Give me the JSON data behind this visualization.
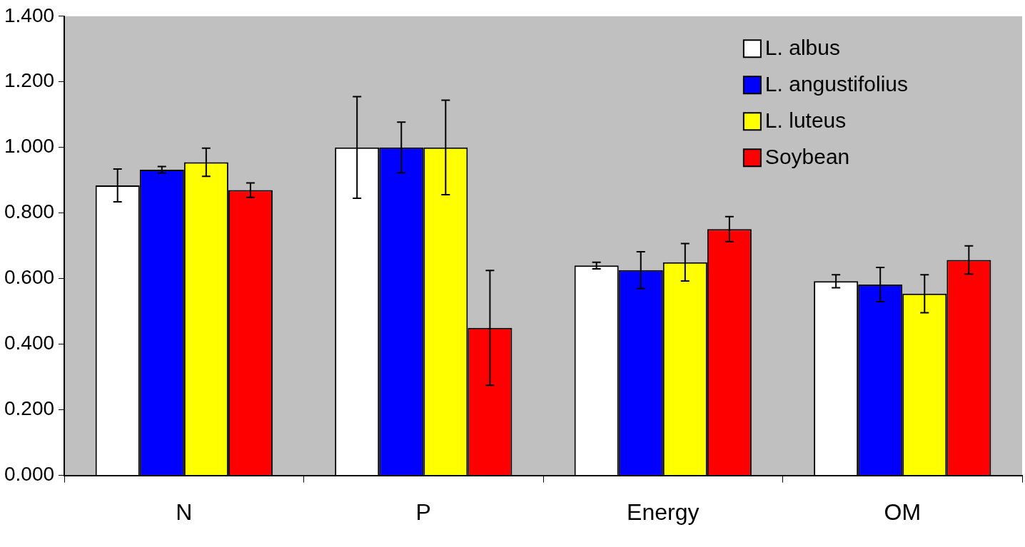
{
  "chart_data": {
    "type": "bar",
    "categories": [
      "N",
      "P",
      "Energy",
      "OM"
    ],
    "series": [
      {
        "name": "L. albus",
        "color": "#ffffff",
        "values": [
          0.884,
          1.0,
          0.64,
          0.592
        ],
        "errors": [
          0.05,
          0.155,
          0.01,
          0.02
        ]
      },
      {
        "name": "L. angustifolius",
        "color": "#0000ff",
        "values": [
          0.932,
          1.0,
          0.626,
          0.582
        ],
        "errors": [
          0.01,
          0.077,
          0.056,
          0.052
        ]
      },
      {
        "name": "L. luteus",
        "color": "#ffff00",
        "values": [
          0.955,
          1.0,
          0.65,
          0.554
        ],
        "errors": [
          0.043,
          0.144,
          0.057,
          0.058
        ]
      },
      {
        "name": "Soybean",
        "color": "#ff0000",
        "values": [
          0.87,
          0.45,
          0.751,
          0.657
        ],
        "errors": [
          0.022,
          0.175,
          0.038,
          0.043
        ]
      }
    ],
    "ylim": [
      0,
      1.4
    ],
    "yticks": [
      {
        "value": 0,
        "label": "0.000"
      },
      {
        "value": 0.2,
        "label": "0.200"
      },
      {
        "value": 0.4,
        "label": "0.400"
      },
      {
        "value": 0.6,
        "label": "0.600"
      },
      {
        "value": 0.8,
        "label": "0.800"
      },
      {
        "value": 1.0,
        "label": "1.000"
      },
      {
        "value": 1.2,
        "label": "1.200"
      },
      {
        "value": 1.4,
        "label": "1.400"
      }
    ],
    "grid": false,
    "legend": "top right"
  }
}
